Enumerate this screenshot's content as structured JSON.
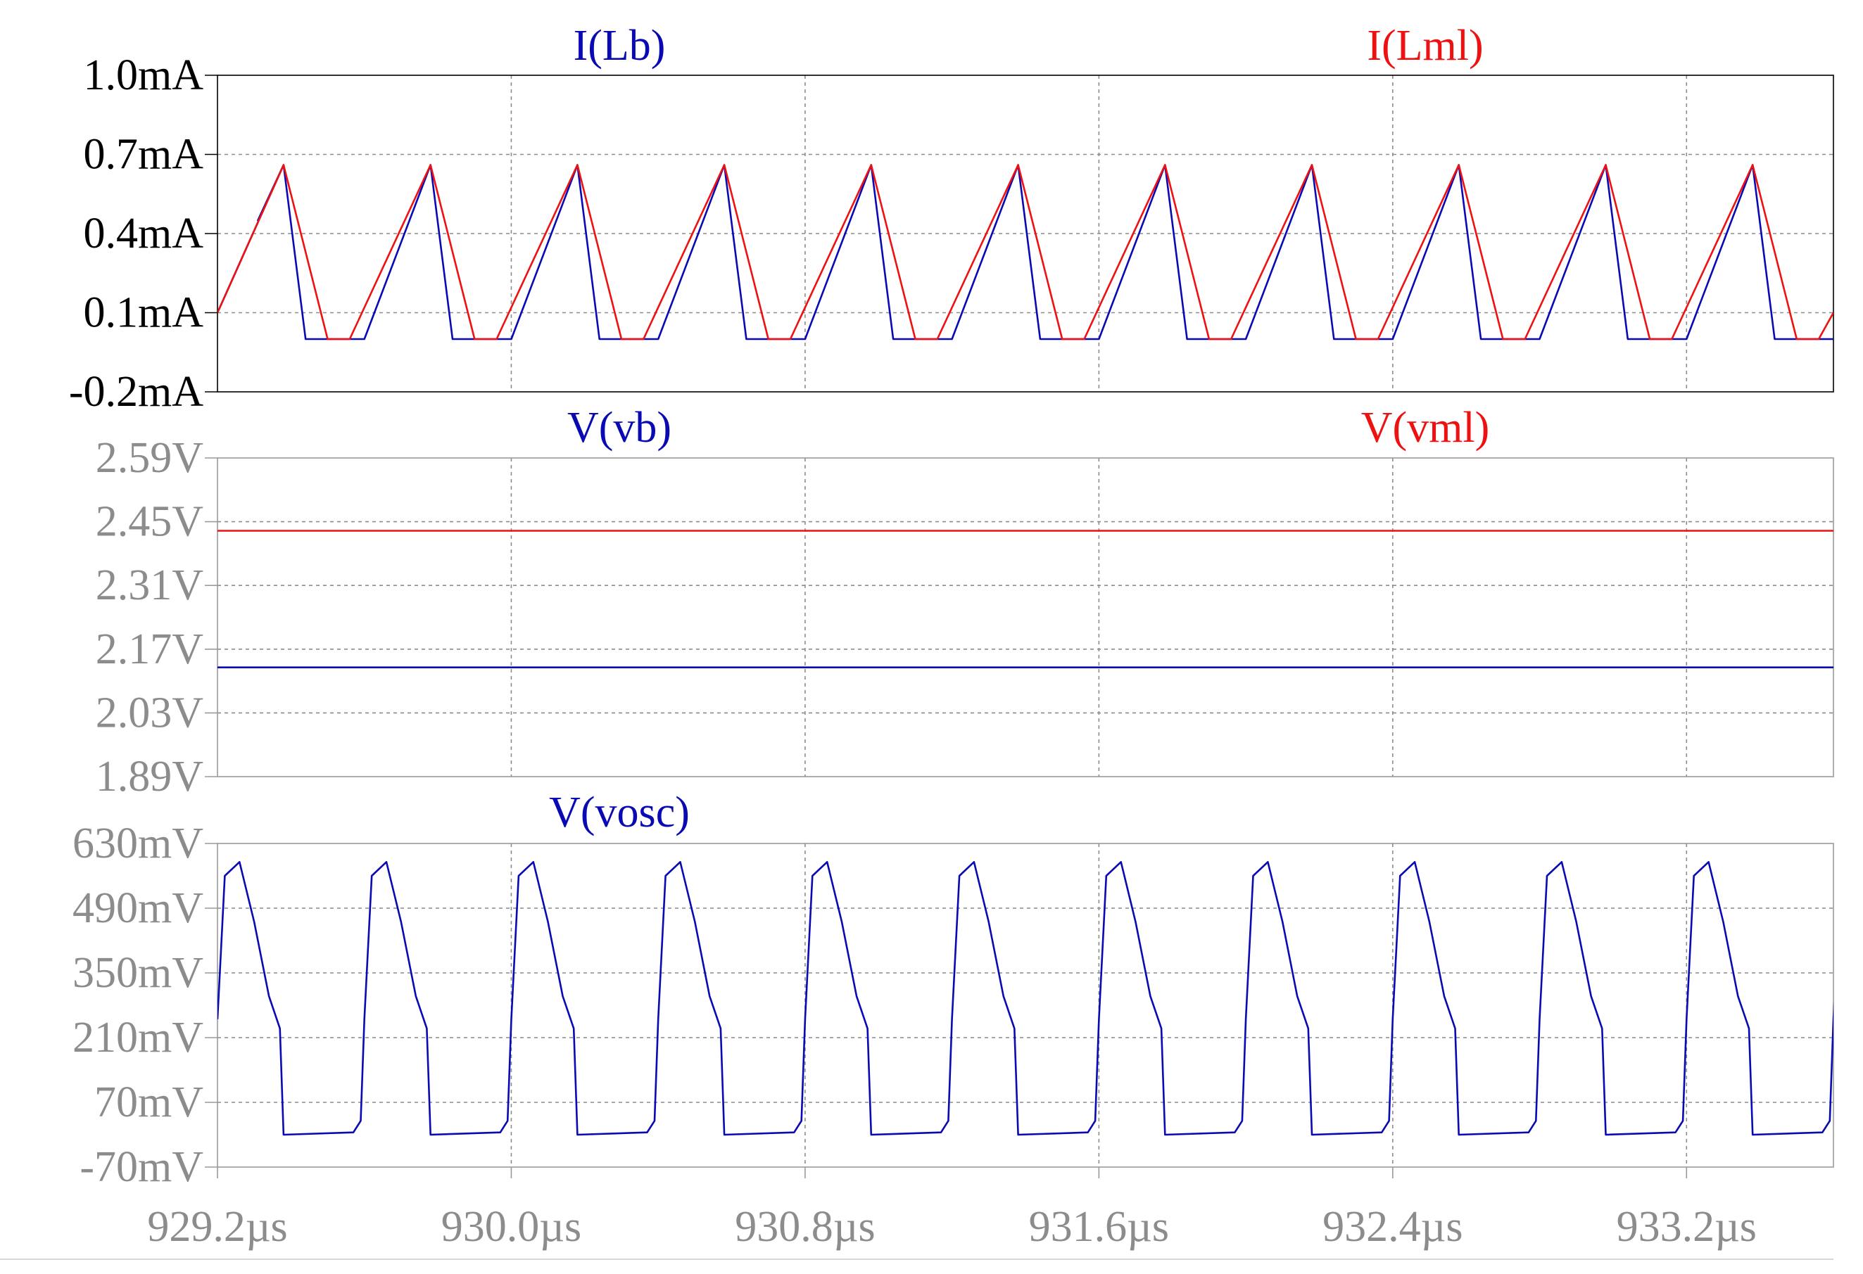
{
  "chart_data": [
    {
      "type": "line",
      "title_left": "I(Lb)",
      "title_right": "I(Lml)",
      "x_unit": "µs",
      "xlim": [
        929.2,
        933.6
      ],
      "ylim": [
        -0.2,
        1.0
      ],
      "y_unit": "mA",
      "yticks": [
        -0.2,
        0.1,
        0.4,
        0.7,
        1.0
      ],
      "ytick_labels": [
        "-0.2mA",
        "0.1mA",
        "0.4mA",
        "0.7mA",
        "1.0mA"
      ],
      "tick_color": "#000000",
      "grid": true,
      "series": [
        {
          "name": "I(Lb)",
          "color": "#0a0ab4",
          "description": "sawtooth, period 0.4µs: ramps 0.1→0.66mA, falls sharply to 0.0mA, flat",
          "x": [
            929.2,
            929.38,
            929.31,
            929.38,
            929.44,
            929.6,
            929.78,
            929.84,
            930.0,
            930.18,
            930.24,
            930.4,
            930.58,
            930.64,
            930.8,
            930.98,
            931.04,
            931.2,
            931.38,
            931.44,
            931.6,
            931.78,
            931.84,
            932.0,
            932.18,
            932.24,
            932.4,
            932.58,
            932.64,
            932.8,
            932.98,
            933.04,
            933.2,
            933.38,
            933.44,
            933.6
          ],
          "y": [
            0.1,
            0.66,
            0.45,
            0.66,
            0.0,
            0.0,
            0.66,
            0.0,
            0.0,
            0.66,
            0.0,
            0.0,
            0.66,
            0.0,
            0.0,
            0.66,
            0.0,
            0.0,
            0.66,
            0.0,
            0.0,
            0.66,
            0.0,
            0.0,
            0.66,
            0.0,
            0.0,
            0.66,
            0.0,
            0.0,
            0.66,
            0.0,
            0.0,
            0.66,
            0.0,
            0.0
          ]
        },
        {
          "name": "I(Lml)",
          "color": "#ee1111",
          "description": "sawtooth, period 0.4µs: ramps 0.1→0.66mA, falls gradually to 0.0mA",
          "x": [
            929.2,
            929.38,
            929.5,
            929.56,
            929.78,
            929.9,
            929.96,
            930.18,
            930.3,
            930.36,
            930.58,
            930.7,
            930.76,
            930.98,
            931.1,
            931.16,
            931.38,
            931.5,
            931.56,
            931.78,
            931.9,
            931.96,
            932.18,
            932.3,
            932.36,
            932.58,
            932.7,
            932.76,
            932.98,
            933.1,
            933.16,
            933.38,
            933.5,
            933.56,
            933.6
          ],
          "y": [
            0.1,
            0.66,
            0.0,
            0.0,
            0.66,
            0.0,
            0.0,
            0.66,
            0.0,
            0.0,
            0.66,
            0.0,
            0.0,
            0.66,
            0.0,
            0.0,
            0.66,
            0.0,
            0.0,
            0.66,
            0.0,
            0.0,
            0.66,
            0.0,
            0.0,
            0.66,
            0.0,
            0.0,
            0.66,
            0.0,
            0.0,
            0.66,
            0.0,
            0.0,
            0.1
          ]
        }
      ]
    },
    {
      "type": "line",
      "title_left": "V(vb)",
      "title_right": "V(vml)",
      "x_unit": "µs",
      "xlim": [
        929.2,
        933.6
      ],
      "ylim": [
        1.89,
        2.59
      ],
      "y_unit": "V",
      "yticks": [
        1.89,
        2.03,
        2.17,
        2.31,
        2.45,
        2.59
      ],
      "ytick_labels": [
        "1.89V",
        "2.03V",
        "2.17V",
        "2.31V",
        "2.45V",
        "2.59V"
      ],
      "tick_color": "#8c8c8c",
      "grid": true,
      "series": [
        {
          "name": "V(vb)",
          "color": "#0a0ab4",
          "x": [
            929.2,
            933.6
          ],
          "y": [
            2.13,
            2.13
          ]
        },
        {
          "name": "V(vml)",
          "color": "#ee1111",
          "x": [
            929.2,
            933.6
          ],
          "y": [
            2.43,
            2.43
          ]
        }
      ]
    },
    {
      "type": "line",
      "title_left": "V(vosc)",
      "x_unit": "µs",
      "xlim": [
        929.2,
        933.6
      ],
      "ylim": [
        -70,
        630
      ],
      "y_unit": "mV",
      "yticks": [
        -70,
        70,
        210,
        350,
        490,
        630
      ],
      "ytick_labels": [
        "-70mV",
        "70mV",
        "210mV",
        "350mV",
        "490mV",
        "630mV"
      ],
      "tick_color": "#8c8c8c",
      "grid": true,
      "series": [
        {
          "name": "V(vosc)",
          "color": "#0a0ab4",
          "description": "periodic pulse, period 0.4µs: fast rise to ~590mV, slow decay to ~230mV, drop to ~0mV, flat",
          "period": 0.4,
          "start": 929.2,
          "pulse_x_offsets": [
            0.0,
            0.02,
            0.06,
            0.1,
            0.14,
            0.17,
            0.18,
            0.37,
            0.39,
            0.4
          ],
          "pulse_y": [
            250,
            560,
            590,
            460,
            300,
            230,
            0,
            5,
            30,
            250
          ]
        }
      ]
    }
  ],
  "x_axis": {
    "ticks": [
      929.2,
      930.0,
      930.8,
      931.6,
      932.4,
      933.2
    ],
    "tick_labels": [
      "929.2µs",
      "930.0µs",
      "930.8µs",
      "931.6µs",
      "932.4µs",
      "933.2µs"
    ]
  }
}
